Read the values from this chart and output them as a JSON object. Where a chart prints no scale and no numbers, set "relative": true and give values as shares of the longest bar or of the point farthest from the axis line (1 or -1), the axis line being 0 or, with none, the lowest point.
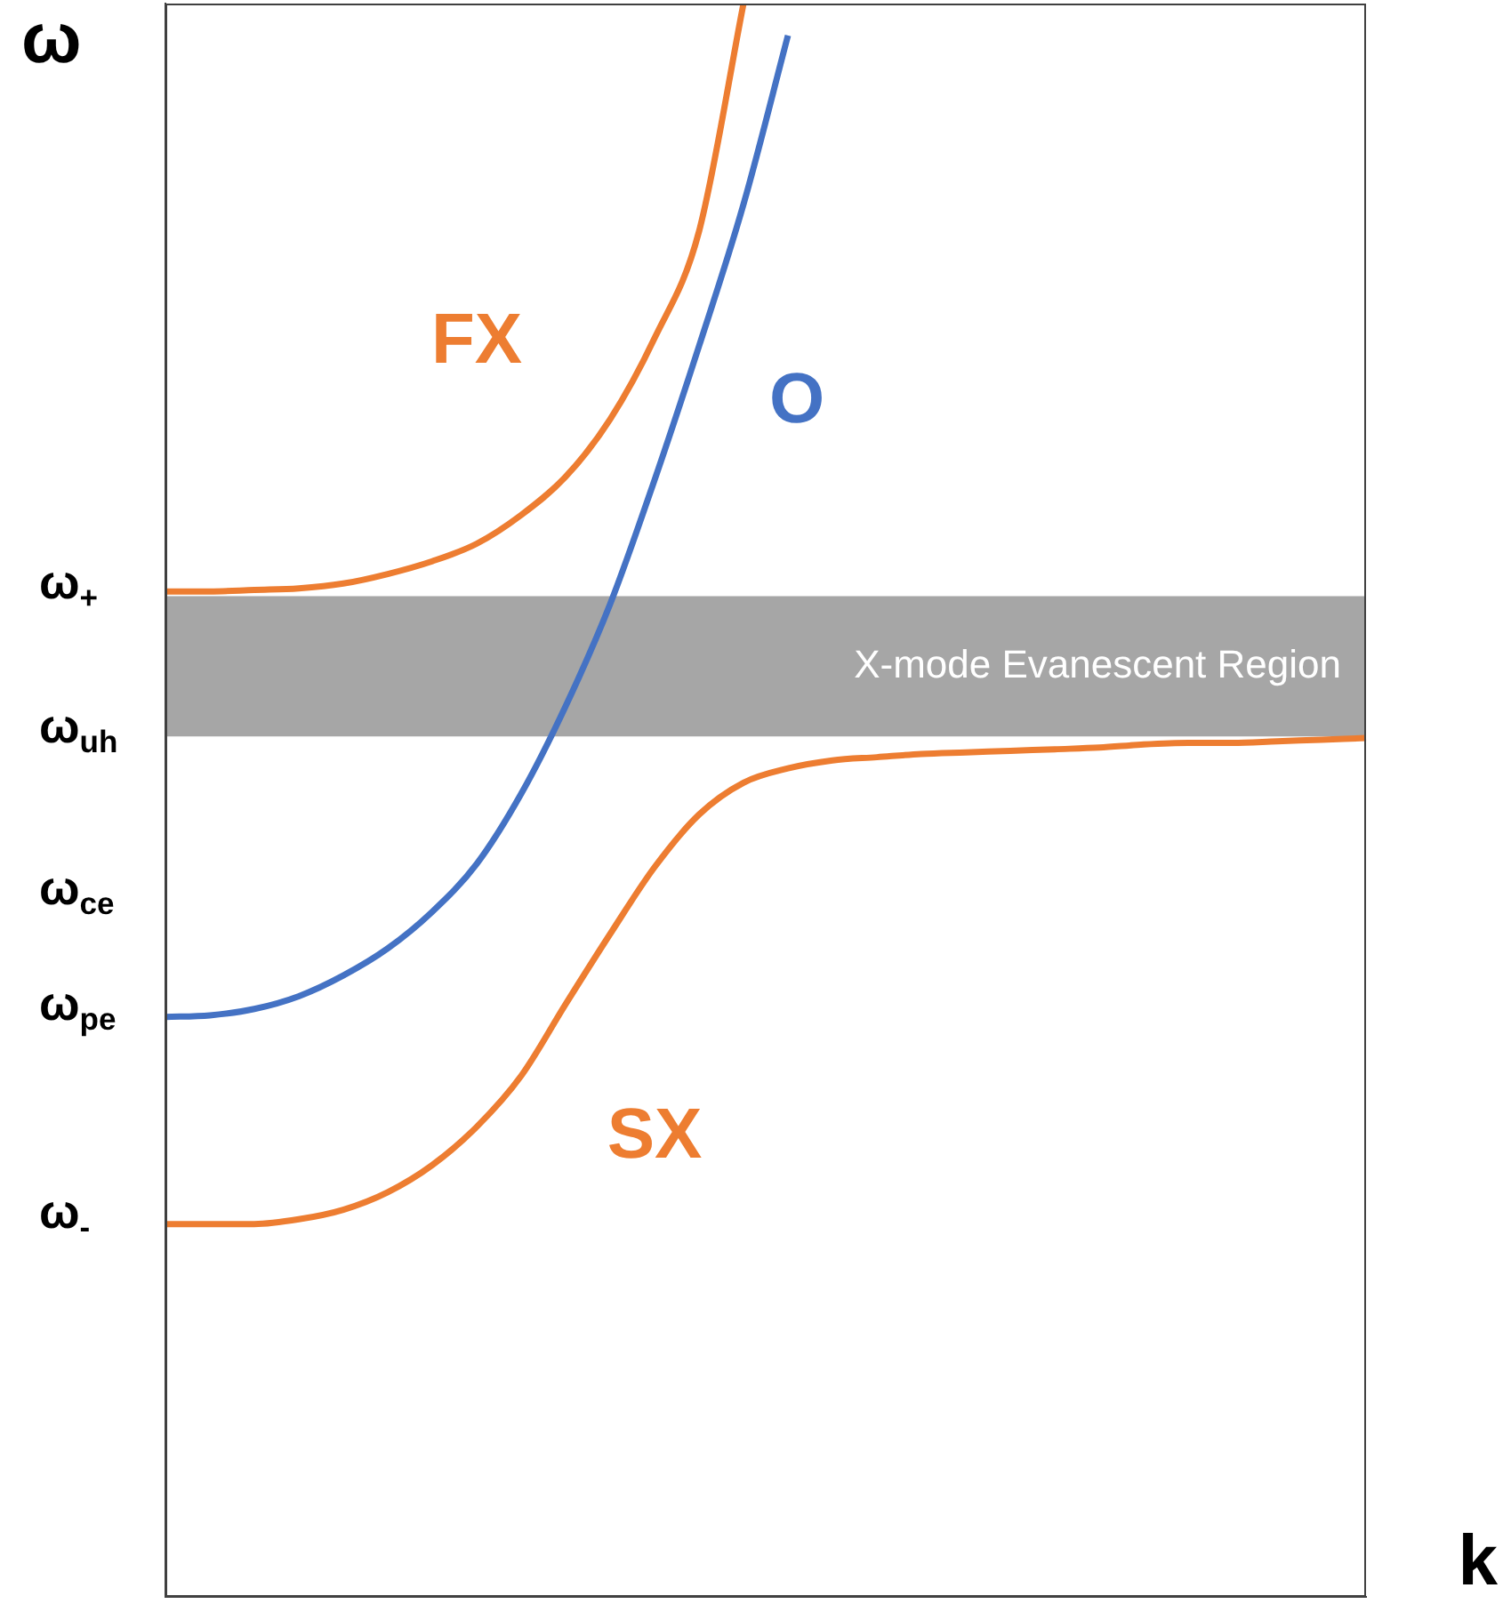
{
  "chart_data": {
    "type": "line",
    "xlabel": "k",
    "ylabel": "ω",
    "categories": [
      null,
      null,
      null,
      null,
      null,
      null,
      null,
      null,
      null,
      null,
      null,
      null,
      null,
      null,
      null,
      null,
      null,
      null,
      null,
      null,
      null,
      null,
      null,
      null,
      null,
      null,
      null,
      null
    ],
    "relative": true,
    "annotations": [
      "ω$_{+}$",
      "ω$_{uh}$",
      "ω$_{ce}$",
      "ω$_{pe}$",
      "ω$_{-}$"
    ],
    "series": [
      {
        "name": "FX",
        "color": "#ed7d31",
        "values": [
          0.631,
          0.631,
          0.632,
          0.633,
          0.636,
          0.642,
          0.65,
          0.661,
          0.679,
          0.703,
          0.739,
          0.79,
          0.857,
          1.0,
          null,
          null,
          null,
          null,
          null,
          null,
          null,
          null,
          null,
          null,
          null,
          null,
          null,
          null
        ]
      },
      {
        "name": "O",
        "color": "#4472c4",
        "values": [
          0.364,
          0.365,
          0.369,
          0.377,
          0.39,
          0.407,
          0.43,
          0.46,
          0.504,
          0.559,
          0.623,
          0.701,
          0.785,
          0.874,
          0.98,
          null,
          null,
          null,
          null,
          null,
          null,
          null,
          null,
          null,
          null,
          null,
          null,
          null
        ]
      },
      {
        "name": "SX",
        "color": "#ed7d31",
        "values": [
          0.234,
          0.234,
          0.234,
          0.237,
          0.243,
          0.254,
          0.271,
          0.295,
          0.327,
          0.372,
          0.416,
          0.458,
          0.491,
          0.511,
          0.52,
          0.525,
          0.527,
          0.529,
          0.53,
          0.531,
          0.532,
          0.533,
          0.535,
          0.536,
          0.536,
          0.537,
          0.538,
          0.539
        ]
      }
    ],
    "bands": [
      {
        "axis": "y",
        "from": 0.54,
        "to": 0.628,
        "label": "X-mode Evanescent Region",
        "color": "#a6a6a6"
      }
    ]
  }
}
